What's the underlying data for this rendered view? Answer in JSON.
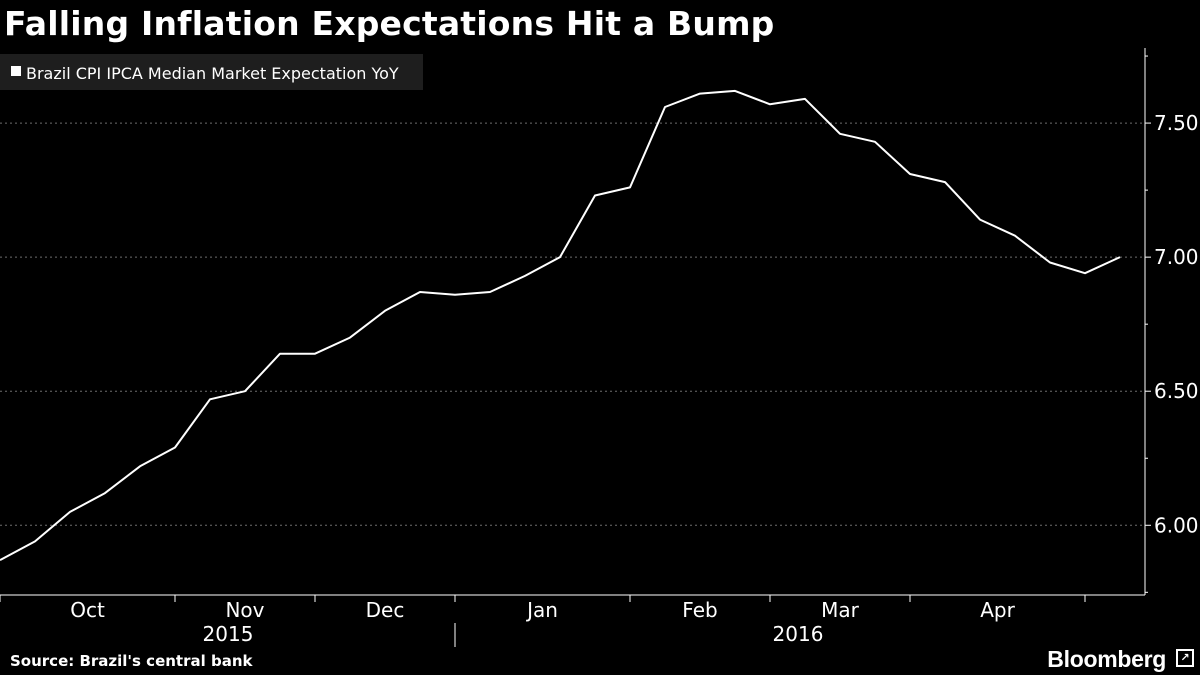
{
  "title": "Falling Inflation Expectations Hit a Bump",
  "footer": {
    "source": "Source: Brazil's central bank",
    "brand": "Bloomberg"
  },
  "colors": {
    "background": "#000000",
    "line": "#ffffff",
    "grid": "#6e6e6e",
    "legend_bg": "#1e1e1e"
  },
  "chart_data": {
    "type": "line",
    "title": "Falling Inflation Expectations Hit a Bump",
    "ylabel": "",
    "xlabel": "",
    "ylim": [
      5.74,
      7.78
    ],
    "yticks": [
      6.0,
      6.5,
      7.0,
      7.5
    ],
    "y_tick_labels": [
      "6.00",
      "6.50",
      "7.00",
      "7.50"
    ],
    "x_month_labels": [
      "Oct",
      "Nov",
      "Dec",
      "Jan",
      "Feb",
      "Mar",
      "Apr"
    ],
    "x_year_labels": [
      "2015",
      "2016"
    ],
    "y_axis_side": "right",
    "grid": true,
    "legend": "top-left",
    "series": [
      {
        "name": "Brazil CPI IPCA Median Market Expectation YoY",
        "values": [
          5.87,
          5.94,
          6.05,
          6.12,
          6.22,
          6.29,
          6.47,
          6.5,
          6.64,
          6.64,
          6.7,
          6.8,
          6.87,
          6.86,
          6.87,
          6.93,
          7.0,
          7.23,
          7.26,
          7.56,
          7.61,
          7.62,
          7.57,
          7.59,
          7.46,
          7.43,
          7.31,
          7.28,
          7.14,
          7.08,
          6.98,
          6.94,
          7.0
        ]
      }
    ]
  }
}
